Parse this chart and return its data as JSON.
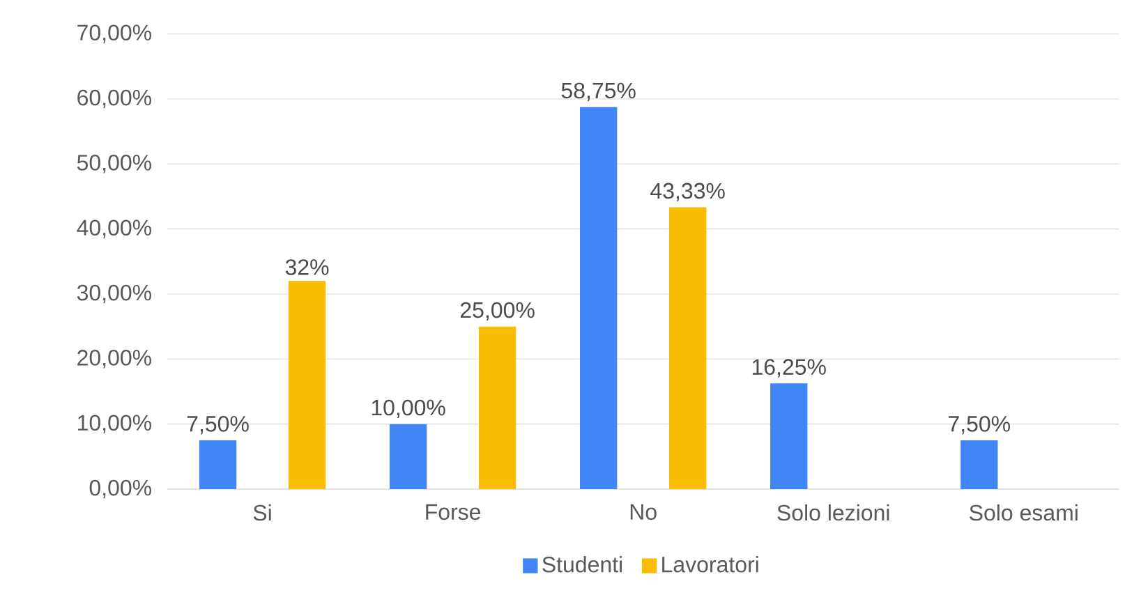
{
  "chart_data": {
    "type": "bar",
    "categories": [
      "Si",
      "Forse",
      "No",
      "Solo lezioni",
      "Solo esami"
    ],
    "series": [
      {
        "name": "Studenti",
        "color": "#4285f4",
        "values": [
          7.5,
          10,
          58.75,
          16.25,
          7.5
        ],
        "value_labels": [
          "7,50%",
          "10,00%",
          "58,75%",
          "16,25%",
          "7,50%"
        ]
      },
      {
        "name": "Lavoratori",
        "color": "#fbbc04",
        "values": [
          32,
          25,
          43.33,
          null,
          null
        ],
        "value_labels": [
          "32%",
          "25,00%",
          "43,33%",
          null,
          null
        ]
      }
    ],
    "ylim": [
      0,
      70
    ],
    "yticks": [
      {
        "value": 0,
        "label": "0,00%"
      },
      {
        "value": 10,
        "label": "10,00%"
      },
      {
        "value": 20,
        "label": "20,00%"
      },
      {
        "value": 30,
        "label": "30,00%"
      },
      {
        "value": 40,
        "label": "40,00%"
      },
      {
        "value": 50,
        "label": "50,00%"
      },
      {
        "value": 60,
        "label": "60,00%"
      },
      {
        "value": 70,
        "label": "70,00%"
      }
    ],
    "grid": "y",
    "legend": "bottom"
  }
}
